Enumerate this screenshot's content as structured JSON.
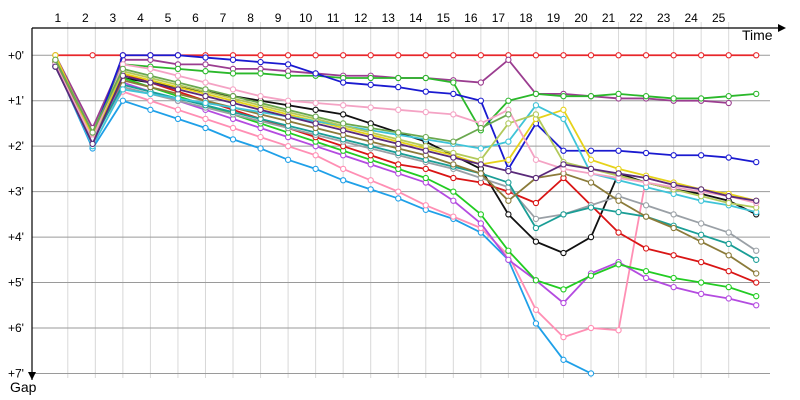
{
  "chart_data": {
    "type": "line",
    "title": "",
    "xlabel": "Time",
    "ylabel": "Gap",
    "x_ticks": [
      "1",
      "2",
      "3",
      "4",
      "5",
      "6",
      "7",
      "8",
      "9",
      "10",
      "11",
      "12",
      "13",
      "14",
      "15",
      "16",
      "17",
      "18",
      "19",
      "20",
      "21",
      "22",
      "23",
      "24",
      "25"
    ],
    "y_ticks": [
      "+0'",
      "+1'",
      "+2'",
      "+3'",
      "+4'",
      "+5'",
      "+6'",
      "+7'"
    ],
    "x_range": [
      0,
      26.8
    ],
    "y_range": [
      -0.6,
      7.1
    ],
    "grid": true,
    "legend": "none",
    "series": [
      {
        "color": "#e8262a",
        "x": [
          0.85,
          2.2,
          3.3,
          4.3,
          5.3,
          6.3,
          7.3,
          8.3,
          9.3,
          10.3,
          11.3,
          12.3,
          13.3,
          14.3,
          15.3,
          16.3,
          17.3,
          18.3,
          19.3,
          20.3,
          21.3,
          22.3,
          23.3,
          24.3,
          25.3,
          26.3
        ],
        "y": [
          0,
          0,
          0,
          0,
          0,
          0,
          0,
          0,
          0,
          0,
          0,
          0,
          0,
          0,
          0,
          0,
          0,
          0,
          0,
          0,
          0,
          0,
          0,
          0,
          0,
          0
        ]
      },
      {
        "color": "#9b3d90",
        "x": [
          0.85,
          2.2,
          3.3,
          4.3,
          5.3,
          6.3,
          7.3,
          8.3,
          9.3,
          10.3,
          11.3,
          12.3,
          13.3,
          14.3,
          15.3,
          16.3,
          17.3,
          18.3,
          19.3,
          20.3,
          21.3,
          22.3,
          23.3,
          24.3,
          25.3
        ],
        "y": [
          0,
          1.6,
          0.1,
          0.1,
          0.2,
          0.2,
          0.3,
          0.3,
          0.35,
          0.4,
          0.45,
          0.45,
          0.5,
          0.5,
          0.55,
          0.6,
          0.1,
          0.85,
          0.85,
          0.9,
          0.95,
          0.95,
          1.0,
          1.0,
          1.05
        ]
      },
      {
        "color": "#2bb82b",
        "x": [
          0.85,
          2.2,
          3.3,
          4.3,
          5.3,
          6.3,
          7.3,
          8.3,
          9.3,
          10.3,
          11.3,
          12.3,
          13.3,
          14.3,
          15.3,
          16.3,
          17.3,
          18.3,
          19.3,
          20.3,
          21.3,
          22.3,
          23.3,
          24.3,
          25.3,
          26.3
        ],
        "y": [
          0.1,
          1.7,
          0.2,
          0.25,
          0.3,
          0.35,
          0.4,
          0.4,
          0.45,
          0.45,
          0.5,
          0.5,
          0.5,
          0.5,
          0.6,
          1.65,
          1.0,
          0.85,
          0.9,
          0.9,
          0.85,
          0.9,
          0.95,
          0.95,
          0.9,
          0.85
        ]
      },
      {
        "color": "#1a1ad0",
        "x": [
          0.85,
          2.2,
          3.3,
          4.3,
          5.3,
          6.3,
          7.3,
          8.3,
          9.3,
          10.3,
          11.3,
          12.3,
          13.3,
          14.3,
          15.3,
          16.3,
          17.3,
          18.3,
          19.3,
          20.3,
          21.3,
          22.3,
          23.3,
          24.3,
          25.3,
          26.3
        ],
        "y": [
          0.2,
          1.8,
          0.0,
          0.0,
          0.0,
          0.05,
          0.1,
          0.15,
          0.2,
          0.4,
          0.6,
          0.65,
          0.7,
          0.8,
          0.85,
          1.0,
          2.5,
          1.5,
          2.1,
          2.1,
          2.1,
          2.15,
          2.2,
          2.2,
          2.25,
          2.35
        ]
      },
      {
        "color": "#111111",
        "x": [
          0.85,
          2.2,
          3.3,
          4.3,
          5.3,
          6.3,
          7.3,
          8.3,
          9.3,
          10.3,
          11.3,
          12.3,
          13.3,
          14.3,
          15.3,
          16.3,
          17.3,
          18.3,
          19.3,
          20.3,
          21.3,
          22.3,
          23.3,
          24.3,
          25.3,
          26.3
        ],
        "y": [
          0.25,
          1.9,
          0.5,
          0.6,
          0.7,
          0.8,
          0.9,
          1.0,
          1.1,
          1.2,
          1.3,
          1.5,
          1.7,
          1.9,
          2.2,
          2.5,
          3.5,
          4.1,
          4.35,
          4.0,
          2.6,
          2.8,
          2.95,
          3.05,
          3.2,
          3.5
        ]
      },
      {
        "color": "#1fa0e8",
        "x": [
          0.85,
          2.2,
          3.3,
          4.3,
          5.3,
          6.3,
          7.3,
          8.3,
          9.3,
          10.3,
          11.3,
          12.3,
          13.3,
          14.3,
          15.3,
          16.3,
          17.3,
          18.3,
          19.3,
          20.3
        ],
        "y": [
          0.2,
          2.05,
          1.0,
          1.2,
          1.4,
          1.6,
          1.85,
          2.05,
          2.3,
          2.5,
          2.75,
          2.95,
          3.15,
          3.4,
          3.6,
          3.9,
          4.5,
          5.9,
          6.7,
          7.0
        ]
      },
      {
        "color": "#ff8fb4",
        "x": [
          0.85,
          2.2,
          3.3,
          4.3,
          5.3,
          6.3,
          7.3,
          8.3,
          9.3,
          10.3,
          11.3,
          12.3,
          13.3,
          14.3,
          15.3,
          16.3,
          17.3,
          18.3,
          19.3,
          20.3,
          21.3,
          22.3,
          23.3
        ],
        "y": [
          0.15,
          1.75,
          0.8,
          1.0,
          1.2,
          1.4,
          1.6,
          1.8,
          2.0,
          2.2,
          2.5,
          2.75,
          3.0,
          3.3,
          3.55,
          3.8,
          4.4,
          5.6,
          6.2,
          6.0,
          6.05,
          2.7,
          2.85
        ]
      },
      {
        "color": "#b44be0",
        "x": [
          0.85,
          2.2,
          3.3,
          4.3,
          5.3,
          6.3,
          7.3,
          8.3,
          9.3,
          10.3,
          11.3,
          12.3,
          13.3,
          14.3,
          15.3,
          16.3,
          17.3,
          18.3,
          19.3,
          20.3,
          21.3,
          22.3,
          23.3,
          24.3,
          25.3,
          26.3
        ],
        "y": [
          0.2,
          1.85,
          0.6,
          0.8,
          1.0,
          1.2,
          1.4,
          1.6,
          1.8,
          2.0,
          2.2,
          2.4,
          2.6,
          2.8,
          3.2,
          3.7,
          4.5,
          4.95,
          5.45,
          4.8,
          4.55,
          4.9,
          5.1,
          5.25,
          5.35,
          5.5
        ]
      },
      {
        "color": "#22cc22",
        "x": [
          0.85,
          2.2,
          3.3,
          4.3,
          5.3,
          6.3,
          7.3,
          8.3,
          9.3,
          10.3,
          11.3,
          12.3,
          13.3,
          14.3,
          15.3,
          16.3,
          17.3,
          18.3,
          19.3,
          20.3,
          21.3,
          22.3,
          23.3,
          24.3,
          25.3,
          26.3
        ],
        "y": [
          0.15,
          1.8,
          0.5,
          0.7,
          0.9,
          1.1,
          1.3,
          1.5,
          1.7,
          1.9,
          2.1,
          2.3,
          2.5,
          2.7,
          3.0,
          3.5,
          4.3,
          4.95,
          5.15,
          4.85,
          4.6,
          4.75,
          4.9,
          5.0,
          5.1,
          5.3
        ]
      },
      {
        "color": "#d91515",
        "x": [
          0.85,
          2.2,
          3.3,
          4.3,
          5.3,
          6.3,
          7.3,
          8.3,
          9.3,
          10.3,
          11.3,
          12.3,
          13.3,
          14.3,
          15.3,
          16.3,
          17.3,
          18.3,
          19.3,
          20.3,
          21.3,
          22.3,
          23.3,
          24.3,
          25.3,
          26.3
        ],
        "y": [
          0.1,
          1.7,
          0.4,
          0.6,
          0.8,
          1.0,
          1.2,
          1.4,
          1.6,
          1.8,
          2.0,
          2.2,
          2.4,
          2.5,
          2.7,
          2.8,
          3.0,
          3.25,
          2.7,
          3.3,
          3.9,
          4.25,
          4.4,
          4.55,
          4.75,
          5.0
        ]
      },
      {
        "color": "#9aa0a6",
        "x": [
          0.85,
          2.2,
          3.3,
          4.3,
          5.3,
          6.3,
          7.3,
          8.3,
          9.3,
          10.3,
          11.3,
          12.3,
          13.3,
          14.3,
          15.3,
          16.3,
          17.3,
          18.3,
          19.3,
          20.3,
          21.3,
          22.3,
          23.3,
          24.3,
          25.3,
          26.3
        ],
        "y": [
          0.2,
          1.8,
          0.7,
          0.85,
          1.0,
          1.15,
          1.3,
          1.45,
          1.6,
          1.75,
          1.9,
          2.05,
          2.2,
          2.35,
          2.5,
          2.7,
          2.9,
          3.6,
          3.5,
          3.3,
          3.1,
          3.3,
          3.5,
          3.7,
          3.9,
          4.3
        ]
      },
      {
        "color": "#1a9e96",
        "x": [
          0.85,
          2.2,
          3.3,
          4.3,
          5.3,
          6.3,
          7.3,
          8.3,
          9.3,
          10.3,
          11.3,
          12.3,
          13.3,
          14.3,
          15.3,
          16.3,
          17.3,
          18.3,
          19.3,
          20.3,
          21.3,
          22.3,
          23.3,
          24.3,
          25.3,
          26.3
        ],
        "y": [
          0.25,
          1.9,
          0.65,
          0.8,
          0.95,
          1.1,
          1.25,
          1.4,
          1.55,
          1.7,
          1.85,
          2.0,
          2.15,
          2.3,
          2.45,
          2.6,
          2.8,
          3.8,
          3.5,
          3.35,
          3.45,
          3.55,
          3.75,
          3.95,
          4.15,
          4.5
        ]
      },
      {
        "color": "#8b7b3a",
        "x": [
          0.85,
          2.2,
          3.3,
          4.3,
          5.3,
          6.3,
          7.3,
          8.3,
          9.3,
          10.3,
          11.3,
          12.3,
          13.3,
          14.3,
          15.3,
          16.3,
          17.3,
          18.3,
          19.3,
          20.3,
          21.3,
          22.3,
          23.3,
          24.3,
          25.3,
          26.3
        ],
        "y": [
          0.15,
          1.75,
          0.55,
          0.7,
          0.85,
          1.0,
          1.15,
          1.3,
          1.45,
          1.6,
          1.75,
          1.9,
          2.05,
          2.2,
          2.4,
          2.6,
          3.2,
          2.7,
          2.6,
          2.8,
          3.2,
          3.55,
          3.8,
          4.1,
          4.4,
          4.8
        ]
      },
      {
        "color": "#e6d21a",
        "x": [
          0.85,
          2.2,
          3.3,
          4.3,
          5.3,
          6.3,
          7.3,
          8.3,
          9.3,
          10.3,
          11.3,
          12.3,
          13.3,
          14.3,
          15.3,
          16.3,
          17.3,
          18.3,
          19.3,
          20.3,
          21.3,
          22.3,
          23.3,
          24.3,
          25.3,
          26.3
        ],
        "y": [
          0.0,
          1.8,
          0.4,
          0.55,
          0.7,
          0.85,
          1.0,
          1.15,
          1.3,
          1.45,
          1.6,
          1.75,
          1.9,
          2.05,
          2.2,
          2.4,
          2.3,
          1.4,
          1.2,
          2.3,
          2.5,
          2.65,
          2.8,
          2.95,
          3.05,
          3.2
        ]
      },
      {
        "color": "#3fc4d8",
        "x": [
          0.85,
          2.2,
          3.3,
          4.3,
          5.3,
          6.3,
          7.3,
          8.3,
          9.3,
          10.3,
          11.3,
          12.3,
          13.3,
          14.3,
          15.3,
          16.3,
          17.3,
          18.3,
          19.3,
          20.3,
          21.3,
          22.3,
          23.3,
          24.3,
          25.3,
          26.3
        ],
        "y": [
          0.2,
          2.0,
          0.75,
          0.85,
          0.95,
          1.05,
          1.15,
          1.25,
          1.35,
          1.45,
          1.55,
          1.65,
          1.75,
          1.85,
          1.95,
          2.05,
          1.9,
          1.1,
          1.4,
          2.6,
          2.75,
          2.9,
          3.05,
          3.2,
          3.3,
          3.45
        ]
      },
      {
        "color": "#b2c95a",
        "x": [
          0.85,
          2.2,
          3.3,
          4.3,
          5.3,
          6.3,
          7.3,
          8.3,
          9.3,
          10.3,
          11.3,
          12.3,
          13.3,
          14.3,
          15.3,
          16.3,
          17.3,
          18.3,
          19.3,
          20.3,
          21.3,
          22.3,
          23.3,
          24.3,
          25.3,
          26.3
        ],
        "y": [
          0.1,
          1.7,
          0.35,
          0.5,
          0.65,
          0.8,
          0.95,
          1.1,
          1.25,
          1.4,
          1.55,
          1.7,
          1.85,
          2.0,
          2.15,
          2.3,
          1.5,
          1.3,
          2.35,
          2.5,
          2.65,
          2.8,
          2.95,
          3.1,
          3.25,
          3.35
        ]
      },
      {
        "color": "#f4a3c4",
        "x": [
          0.85,
          2.2,
          3.3,
          4.3,
          5.3,
          6.3,
          7.3,
          8.3,
          9.3,
          10.3,
          11.3,
          12.3,
          13.3,
          14.3,
          15.3,
          16.3,
          17.3,
          18.3,
          19.3,
          20.3,
          21.3,
          22.3,
          23.3,
          24.3,
          25.3,
          26.3
        ],
        "y": [
          0.2,
          1.85,
          0.2,
          0.3,
          0.45,
          0.6,
          0.75,
          0.9,
          1.0,
          1.05,
          1.1,
          1.15,
          1.2,
          1.25,
          1.3,
          1.5,
          1.2,
          2.3,
          2.5,
          2.6,
          2.7,
          2.8,
          2.9,
          3.0,
          3.1,
          3.25
        ]
      },
      {
        "color": "#5a2a7a",
        "x": [
          0.85,
          2.2,
          3.3,
          4.3,
          5.3,
          6.3,
          7.3,
          8.3,
          9.3,
          10.3,
          11.3,
          12.3,
          13.3,
          14.3,
          15.3,
          16.3,
          17.3,
          18.3,
          19.3,
          20.3,
          21.3,
          22.3,
          23.3,
          24.3,
          25.3,
          26.3
        ],
        "y": [
          0.25,
          1.95,
          0.45,
          0.6,
          0.75,
          0.9,
          1.05,
          1.2,
          1.35,
          1.5,
          1.65,
          1.8,
          1.95,
          2.1,
          2.25,
          2.4,
          2.55,
          2.7,
          2.4,
          2.5,
          2.6,
          2.7,
          2.85,
          2.95,
          3.1,
          3.2
        ]
      },
      {
        "color": "#6aa84f",
        "x": [
          0.85,
          2.2,
          3.3,
          4.3,
          5.3,
          6.3,
          7.3,
          8.3,
          9.3,
          10.3,
          11.3,
          12.3,
          13.3,
          14.3,
          15.3,
          16.3,
          17.3
        ],
        "y": [
          0.1,
          1.7,
          0.3,
          0.45,
          0.6,
          0.75,
          0.9,
          1.05,
          1.2,
          1.35,
          1.5,
          1.6,
          1.7,
          1.8,
          1.9,
          1.6,
          1.3
        ]
      }
    ]
  }
}
